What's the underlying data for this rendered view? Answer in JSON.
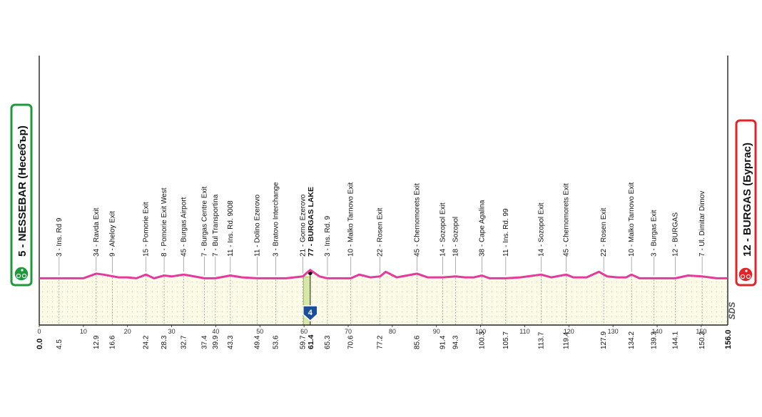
{
  "chart_data": {
    "type": "area",
    "x_axis": {
      "min": 0,
      "max": 156,
      "ticks": [
        "0",
        "10",
        "20",
        "30",
        "40",
        "50",
        "60",
        "70",
        "80",
        "90",
        "100",
        "110",
        "120",
        "130",
        "140",
        "150"
      ]
    },
    "profile_series": {
      "x": [
        0,
        10,
        12.9,
        14.5,
        18,
        20,
        22,
        24.2,
        26,
        28.3,
        30,
        32.7,
        34,
        37.4,
        39.9,
        43.3,
        46,
        49.4,
        53.6,
        56,
        59.7,
        61.4,
        63.5,
        65.3,
        70.6,
        72.5,
        75,
        77.2,
        78.5,
        81,
        85.6,
        88,
        91.4,
        94.3,
        96.5,
        98.5,
        100.3,
        102,
        105.7,
        109,
        113.7,
        116,
        119.4,
        121,
        124,
        126.8,
        128.7,
        131,
        133,
        134.2,
        136,
        139.3,
        144.1,
        147,
        150.2,
        153.5,
        156
      ],
      "elevation": [
        2,
        2,
        7,
        6,
        3,
        3,
        2,
        6,
        2,
        5,
        4,
        6,
        5,
        2,
        2,
        5,
        3,
        2,
        2,
        2,
        4,
        11,
        4,
        2,
        2,
        6,
        3,
        4,
        9,
        3,
        7,
        3,
        3,
        4,
        3,
        3,
        5,
        2,
        2,
        3,
        6,
        3,
        6,
        3,
        3,
        9,
        4,
        3,
        3,
        6,
        2,
        2,
        2,
        5,
        4,
        2,
        2
      ]
    },
    "start": {
      "label": "5 - NESSEBAR (Несебър)",
      "km": "0.0"
    },
    "finish": {
      "label": "12 - BURGAS (Бургас)",
      "km": "156.0"
    },
    "intermediate": {
      "km": "61.4",
      "label": "77 - BURGAS LAKE",
      "marker": "4"
    },
    "waypoints": [
      {
        "km": 4.5,
        "km_label": "4.5",
        "label": "3 - Ins. Rd 9"
      },
      {
        "km": 12.9,
        "km_label": "12.9",
        "label": "34 - Ravda Exit"
      },
      {
        "km": 16.6,
        "km_label": "16.6",
        "label": "9 - Aheloy Exit"
      },
      {
        "km": 24.2,
        "km_label": "24.2",
        "label": "15 - Pomorie Exit"
      },
      {
        "km": 28.3,
        "km_label": "28.3",
        "label": "8 - Pomorie Exit West"
      },
      {
        "km": 32.7,
        "km_label": "32.7",
        "label": "45 - Burgas Airport"
      },
      {
        "km": 37.4,
        "km_label": "37.4",
        "label": "7 - Burgas Centre Exit"
      },
      {
        "km": 39.9,
        "km_label": "39.9",
        "label": "7 - Bul Transportina"
      },
      {
        "km": 43.3,
        "km_label": "43.3",
        "label": "11 - Ins. Rd. 9008"
      },
      {
        "km": 49.4,
        "km_label": "49.4",
        "label": "11 - Dolino Ezerovo"
      },
      {
        "km": 53.6,
        "km_label": "53.6",
        "label": "3 - Bratovo Interchange"
      },
      {
        "km": 59.7,
        "km_label": "59.7",
        "label": "21 - Gorno Ezerovo"
      },
      {
        "km": 65.3,
        "km_label": "65.3",
        "label": "3 - Ins. Rd. 9"
      },
      {
        "km": 70.6,
        "km_label": "70.6",
        "label": "10 - Malko Tarnovo Exit"
      },
      {
        "km": 77.2,
        "km_label": "77.2",
        "label": "22 - Rosen Exit"
      },
      {
        "km": 85.6,
        "km_label": "85.6",
        "label": "45 - Chernomorets Exit"
      },
      {
        "km": 91.4,
        "km_label": "91.4",
        "label": "14 - Sozopol Exit"
      },
      {
        "km": 94.3,
        "km_label": "94.3",
        "label": "18 - Sozopol"
      },
      {
        "km": 100.3,
        "km_label": "100.3",
        "label": "38 - Cape Agalina"
      },
      {
        "km": 105.7,
        "km_label": "105.7",
        "label": "11 - Ins. Rd. 99"
      },
      {
        "km": 113.7,
        "km_label": "113.7",
        "label": "14 - Sozopol Exit"
      },
      {
        "km": 119.4,
        "km_label": "119.4",
        "label": "45 - Chernomorets Exit"
      },
      {
        "km": 127.9,
        "km_label": "127.9",
        "label": "22 - Rosen Exit"
      },
      {
        "km": 134.2,
        "km_label": "134.2",
        "label": "10 - Malko Tarnovo Exit"
      },
      {
        "km": 139.3,
        "km_label": "139.3",
        "label": "3 - Burgas Exit"
      },
      {
        "km": 144.1,
        "km_label": "144.1",
        "label": "12 - BURGAS"
      },
      {
        "km": 150.2,
        "km_label": "150.2",
        "label": "7 - Ul. Dimitar Dimov"
      }
    ],
    "watermark": "SDS"
  },
  "colors": {
    "profile_line": "#e5399c",
    "profile_fill": "#fbfbe8",
    "start_border": "#1e9a3c",
    "finish_border": "#e0252a",
    "marker_blue": "#1b4f9a",
    "sprint_fill": "#d6e8a6",
    "grid": "#8a8a8a",
    "text": "#111111"
  }
}
